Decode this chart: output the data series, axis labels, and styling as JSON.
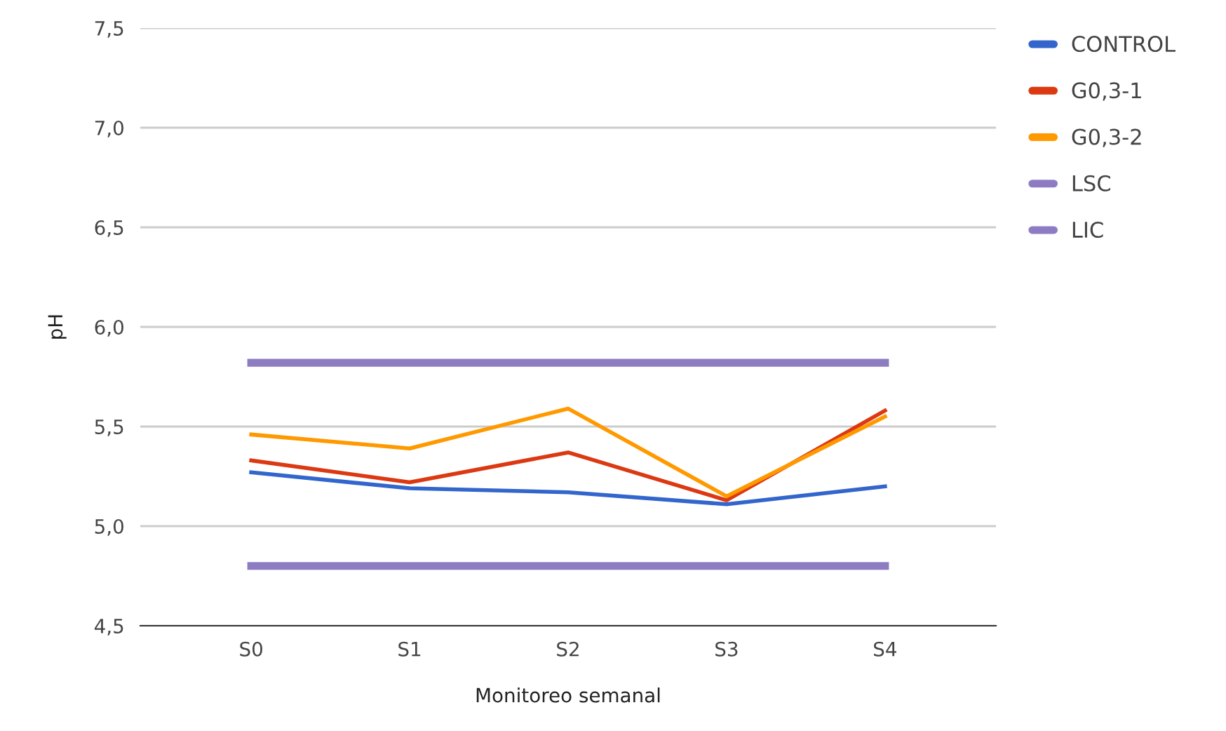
{
  "chart_data": {
    "type": "line",
    "xlabel": "Monitoreo semanal",
    "ylabel": "pH",
    "categories": [
      "S0",
      "S1",
      "S2",
      "S3",
      "S4"
    ],
    "series": [
      {
        "name": "CONTROL",
        "color": "#3366cc",
        "values": [
          5.27,
          5.19,
          5.17,
          5.11,
          5.2
        ]
      },
      {
        "name": "G0,3-1",
        "color": "#dc3912",
        "values": [
          5.33,
          5.22,
          5.37,
          5.13,
          5.58
        ]
      },
      {
        "name": "G0,3-2",
        "color": "#ff9900",
        "values": [
          5.46,
          5.39,
          5.59,
          5.15,
          5.55
        ]
      },
      {
        "name": "LSC",
        "color": "#8e7cc3",
        "values": [
          5.82,
          5.82,
          5.82,
          5.82,
          5.82
        ]
      },
      {
        "name": "LIC",
        "color": "#8e7cc3",
        "values": [
          4.8,
          4.8,
          4.8,
          4.8,
          4.8
        ]
      }
    ],
    "ylim": [
      4.5,
      7.5
    ],
    "yticks": [
      {
        "value": 4.5,
        "label": "4,5"
      },
      {
        "value": 5.0,
        "label": "5,0"
      },
      {
        "value": 5.5,
        "label": "5,5"
      },
      {
        "value": 6.0,
        "label": "6,0"
      },
      {
        "value": 6.5,
        "label": "6,5"
      },
      {
        "value": 7.0,
        "label": "7,0"
      },
      {
        "value": 7.5,
        "label": "7,5"
      }
    ],
    "grid": "y",
    "legend": "right",
    "marker": "none",
    "line_style": "solid"
  }
}
